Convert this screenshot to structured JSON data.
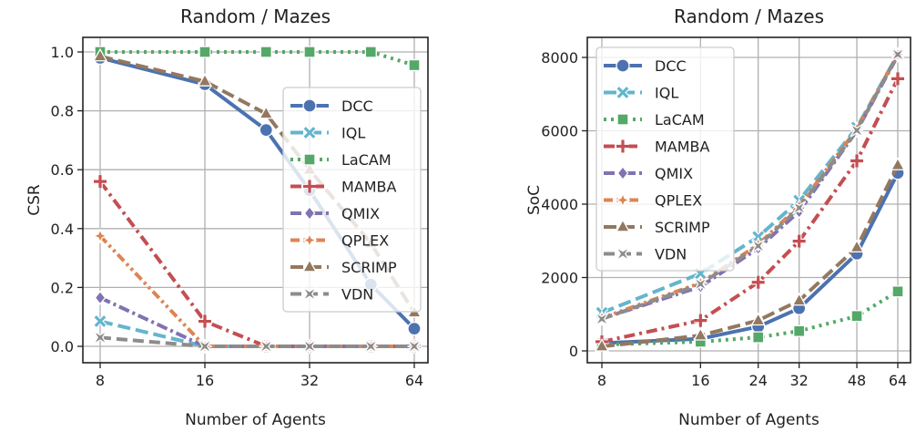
{
  "chart_data": [
    {
      "type": "line",
      "title": "Random / Mazes",
      "xlabel": "Number of Agents",
      "ylabel": "CSR",
      "x_scale": "log2",
      "x": [
        8,
        16,
        24,
        32,
        48,
        64
      ],
      "xticks": [
        "8",
        "16",
        "32",
        "64"
      ],
      "xtick_values": [
        8,
        16,
        32,
        64
      ],
      "yticks": [
        "0.0",
        "0.2",
        "0.4",
        "0.6",
        "0.8",
        "1.0"
      ],
      "ylim": [
        -0.03,
        1.05
      ],
      "grid": true,
      "legend_position": "center-right",
      "series": [
        {
          "name": "DCC",
          "values": [
            0.98,
            0.89,
            0.735,
            0.53,
            0.21,
            0.06
          ]
        },
        {
          "name": "IQL",
          "values": [
            0.085,
            0,
            0,
            0,
            0,
            0
          ]
        },
        {
          "name": "LaCAM",
          "values": [
            1.0,
            1.0,
            1.0,
            1.0,
            1.0,
            0.955
          ]
        },
        {
          "name": "MAMBA",
          "values": [
            0.56,
            0.085,
            0,
            0,
            0,
            0
          ]
        },
        {
          "name": "QMIX",
          "values": [
            0.165,
            0,
            0,
            0,
            0,
            0
          ]
        },
        {
          "name": "QPLEX",
          "values": [
            0.375,
            0,
            0,
            0,
            0,
            0
          ]
        },
        {
          "name": "SCRIMP",
          "values": [
            0.985,
            0.9,
            0.79,
            0.6,
            0.35,
            0.115
          ]
        },
        {
          "name": "VDN",
          "values": [
            0.03,
            0,
            0,
            0,
            0,
            0
          ]
        }
      ]
    },
    {
      "type": "line",
      "title": "Random / Mazes",
      "xlabel": "Number of Agents",
      "ylabel": "SoC",
      "x_scale": "log2",
      "x": [
        8,
        16,
        24,
        32,
        48,
        64
      ],
      "xticks": [
        "8",
        "16",
        "24",
        "32",
        "48",
        "64"
      ],
      "xtick_values": [
        8,
        16,
        24,
        32,
        48,
        64
      ],
      "yticks": [
        "0",
        "2000",
        "4000",
        "6000",
        "8000"
      ],
      "ylim": [
        -400,
        8700
      ],
      "grid": true,
      "legend_position": "upper-left",
      "series": [
        {
          "name": "DCC",
          "values": [
            210,
            330,
            660,
            1160,
            2650,
            4850
          ]
        },
        {
          "name": "IQL",
          "values": [
            1040,
            2110,
            3110,
            4100,
            6090,
            8080
          ]
        },
        {
          "name": "LaCAM",
          "values": [
            170,
            250,
            370,
            540,
            950,
            1620
          ]
        },
        {
          "name": "MAMBA",
          "values": [
            250,
            830,
            1870,
            2990,
            5180,
            7420
          ]
        },
        {
          "name": "QMIX",
          "values": [
            880,
            1750,
            2800,
            3800,
            6000,
            8050
          ]
        },
        {
          "name": "QPLEX",
          "values": [
            900,
            1850,
            2900,
            3950,
            6050,
            8080
          ]
        },
        {
          "name": "SCRIMP",
          "values": [
            120,
            420,
            830,
            1370,
            2820,
            5060
          ]
        },
        {
          "name": "VDN",
          "values": [
            870,
            1820,
            2860,
            3900,
            6010,
            8080
          ]
        }
      ]
    }
  ],
  "series_style": {
    "DCC": {
      "color": "#4c72b0",
      "marker": "circle"
    },
    "IQL": {
      "color": "#64b5cd",
      "marker": "x"
    },
    "LaCAM": {
      "color": "#55a868",
      "marker": "square"
    },
    "MAMBA": {
      "color": "#c44e52",
      "marker": "plus"
    },
    "QMIX": {
      "color": "#8172b3",
      "marker": "diamond"
    },
    "QPLEX": {
      "color": "#dd8452",
      "marker": "star4"
    },
    "SCRIMP": {
      "color": "#937860",
      "marker": "triangle"
    },
    "VDN": {
      "color": "#8c8c8c",
      "marker": "bowtie"
    }
  }
}
